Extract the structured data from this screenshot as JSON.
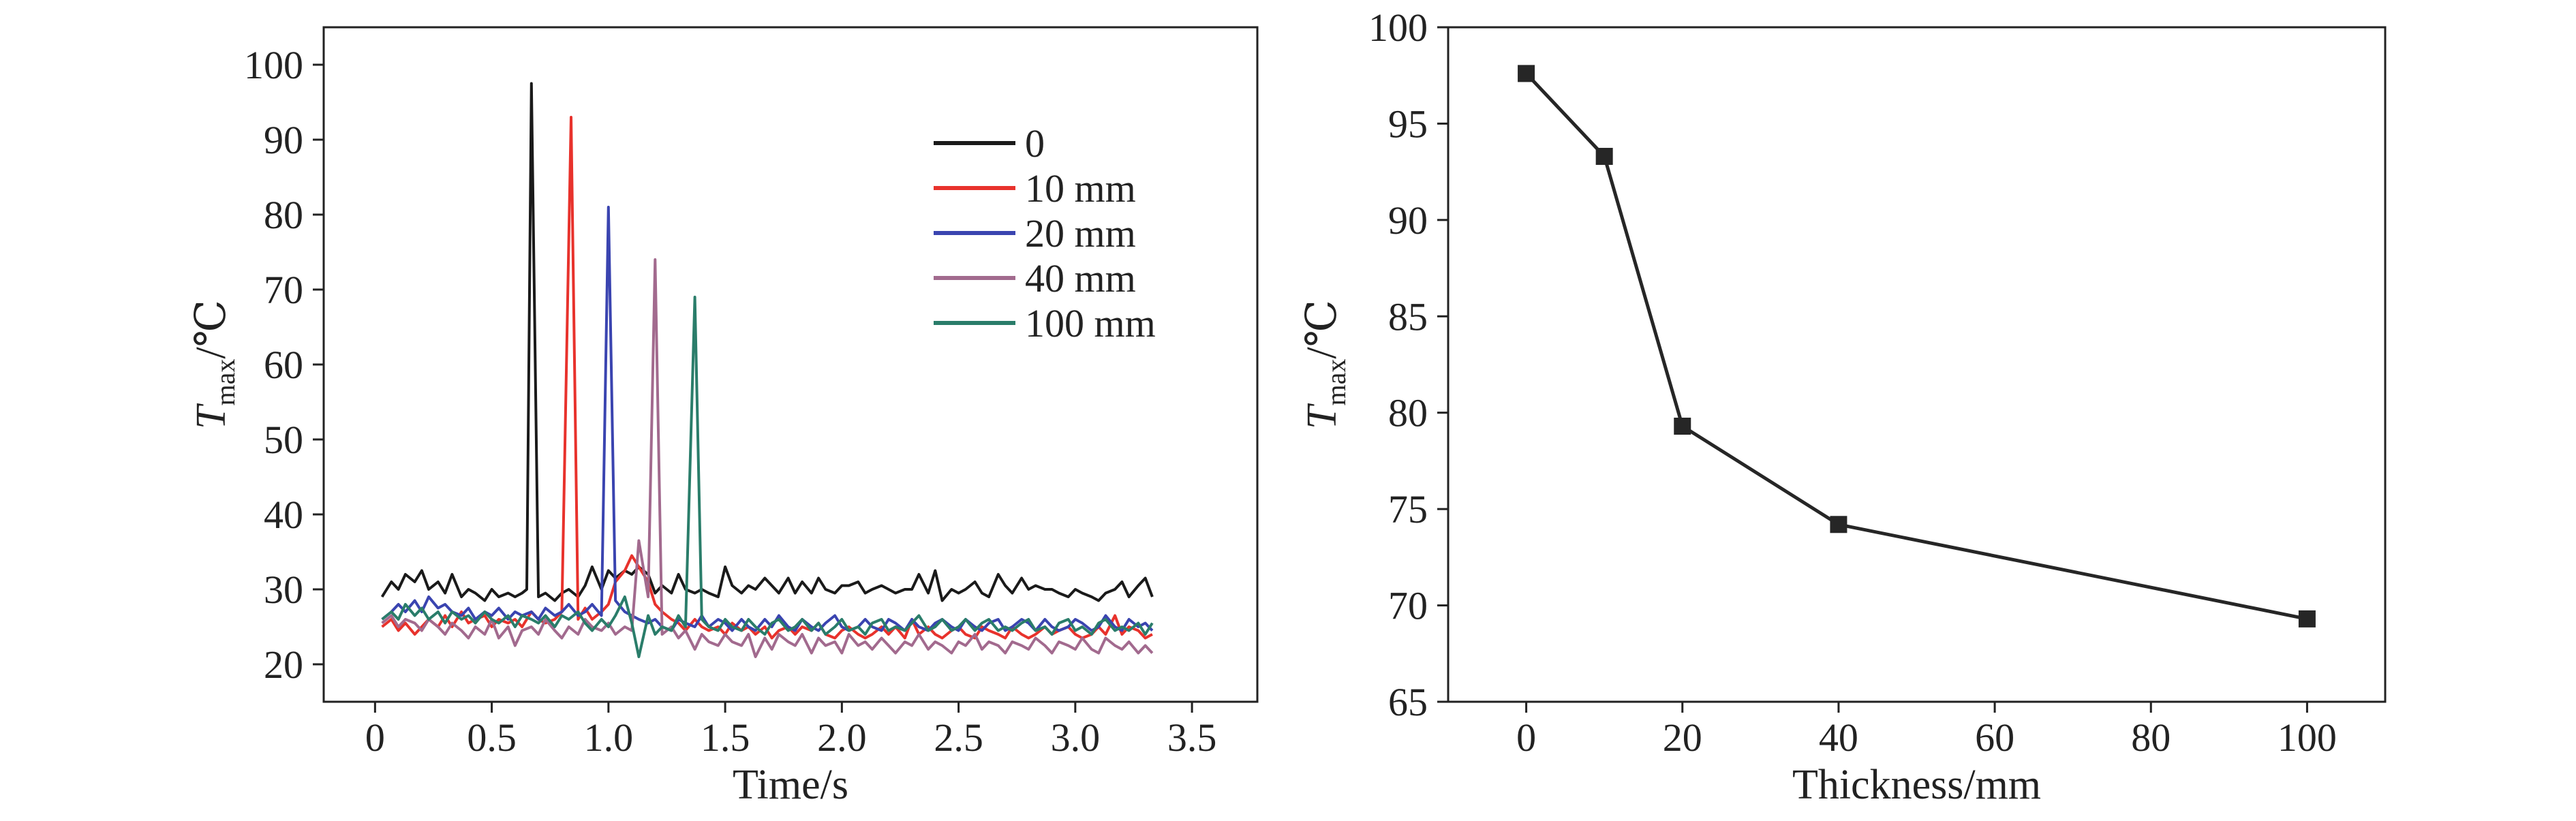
{
  "charts": [
    {
      "type": "line",
      "xlabel": "Time/s",
      "ylabel": {
        "main": "T",
        "sub": "max",
        "unit": "/℃"
      },
      "xlim": [
        -0.22,
        3.78
      ],
      "ylim": [
        15,
        105
      ],
      "xticks": [
        0,
        0.5,
        1.0,
        1.5,
        2.0,
        2.5,
        3.0,
        3.5
      ],
      "xtick_labels": [
        "0",
        "0.5",
        "1.0",
        "1.5",
        "2.0",
        "2.5",
        "3.0",
        "3.5"
      ],
      "yticks": [
        20,
        30,
        40,
        50,
        60,
        70,
        80,
        90,
        100
      ],
      "ytick_labels": [
        "20",
        "30",
        "40",
        "50",
        "60",
        "70",
        "80",
        "90",
        "100"
      ],
      "legend": {
        "position": "top-right"
      },
      "series": [
        {
          "name": "0",
          "color": "#1a1a1a",
          "x": [
            0.03,
            0.07,
            0.1,
            0.13,
            0.17,
            0.2,
            0.23,
            0.27,
            0.3,
            0.33,
            0.37,
            0.4,
            0.43,
            0.47,
            0.5,
            0.53,
            0.57,
            0.6,
            0.63,
            0.65,
            0.67,
            0.7,
            0.73,
            0.77,
            0.8,
            0.83,
            0.87,
            0.9,
            0.93,
            0.97,
            1.0,
            1.03,
            1.07,
            1.1,
            1.13,
            1.17,
            1.2,
            1.23,
            1.27,
            1.3,
            1.33,
            1.37,
            1.4,
            1.43,
            1.47,
            1.5,
            1.53,
            1.57,
            1.6,
            1.63,
            1.67,
            1.7,
            1.73,
            1.77,
            1.8,
            1.83,
            1.87,
            1.9,
            1.93,
            1.97,
            2.0,
            2.03,
            2.07,
            2.1,
            2.13,
            2.17,
            2.2,
            2.23,
            2.27,
            2.3,
            2.33,
            2.37,
            2.4,
            2.43,
            2.47,
            2.5,
            2.53,
            2.57,
            2.6,
            2.63,
            2.67,
            2.7,
            2.73,
            2.77,
            2.8,
            2.83,
            2.87,
            2.9,
            2.93,
            2.97,
            3.0,
            3.03,
            3.07,
            3.1,
            3.13,
            3.17,
            3.2,
            3.23,
            3.27,
            3.3,
            3.33
          ],
          "y": [
            29,
            31,
            30,
            32,
            31,
            32.5,
            30,
            31,
            29.5,
            32,
            29,
            30,
            29.5,
            28.5,
            30,
            29,
            29.5,
            29,
            29.5,
            30,
            97.5,
            29,
            29.5,
            28.5,
            29.5,
            30,
            29,
            30.5,
            33,
            30,
            32.5,
            31.5,
            32.5,
            32,
            33,
            32,
            29.5,
            30.5,
            29.5,
            32,
            30,
            29.5,
            30,
            29.5,
            29,
            33,
            30.5,
            29.5,
            30.5,
            30,
            31.5,
            30.5,
            29.5,
            31.5,
            29.5,
            31,
            29.5,
            31.5,
            30,
            29.5,
            30.5,
            30.5,
            31,
            29.5,
            30,
            30.5,
            30,
            29.5,
            30,
            30,
            32,
            29.5,
            32.5,
            28.5,
            30,
            29.5,
            30,
            31,
            29.5,
            29,
            32,
            30.5,
            29.5,
            31.5,
            30,
            30.5,
            30,
            30,
            29.5,
            29,
            30,
            29.5,
            29,
            28.5,
            29.5,
            30,
            31,
            29,
            30.5,
            31.5,
            29
          ]
        },
        {
          "name": "10 mm",
          "color": "#e8322c",
          "x": [
            0.03,
            0.07,
            0.1,
            0.13,
            0.17,
            0.2,
            0.23,
            0.27,
            0.3,
            0.33,
            0.37,
            0.4,
            0.43,
            0.47,
            0.5,
            0.53,
            0.57,
            0.6,
            0.63,
            0.67,
            0.7,
            0.73,
            0.77,
            0.8,
            0.84,
            0.87,
            0.9,
            0.93,
            0.97,
            1.0,
            1.03,
            1.07,
            1.1,
            1.13,
            1.17,
            1.2,
            1.23,
            1.27,
            1.3,
            1.33,
            1.37,
            1.4,
            1.43,
            1.47,
            1.5,
            1.53,
            1.57,
            1.6,
            1.63,
            1.67,
            1.7,
            1.73,
            1.77,
            1.8,
            1.83,
            1.87,
            1.9,
            1.93,
            1.97,
            2.0,
            2.03,
            2.07,
            2.1,
            2.13,
            2.17,
            2.2,
            2.23,
            2.27,
            2.3,
            2.33,
            2.37,
            2.4,
            2.43,
            2.47,
            2.5,
            2.53,
            2.57,
            2.6,
            2.63,
            2.67,
            2.7,
            2.73,
            2.77,
            2.8,
            2.83,
            2.87,
            2.9,
            2.93,
            2.97,
            3.0,
            3.03,
            3.07,
            3.1,
            3.13,
            3.17,
            3.2,
            3.23,
            3.27,
            3.3,
            3.33
          ],
          "y": [
            25,
            26,
            24.5,
            25.5,
            24,
            25,
            26,
            25,
            26.5,
            25,
            27,
            25.5,
            26,
            26.5,
            25,
            26,
            25.5,
            26,
            25,
            27,
            26,
            25.5,
            26,
            27,
            93,
            26,
            27.5,
            26,
            27,
            28,
            31,
            32.5,
            34.5,
            33,
            31,
            28,
            27,
            26,
            25.5,
            24.5,
            26,
            25,
            24.5,
            25,
            24,
            25.5,
            24.5,
            25,
            24,
            25,
            23.5,
            24.5,
            25,
            24,
            25,
            24.5,
            25.5,
            24,
            23.5,
            24.5,
            25,
            24,
            23.5,
            24,
            25,
            24,
            25,
            23.5,
            26,
            24,
            25,
            24,
            23.5,
            24.5,
            25,
            24,
            23.5,
            25,
            24.5,
            24,
            23.5,
            25,
            24,
            23.5,
            24,
            25,
            24,
            24.5,
            25,
            24,
            23.5,
            24,
            25,
            24,
            26.5,
            24,
            25,
            24.5,
            23.5,
            24
          ]
        },
        {
          "name": "20 mm",
          "color": "#3a44b0",
          "x": [
            0.03,
            0.07,
            0.1,
            0.13,
            0.17,
            0.2,
            0.23,
            0.27,
            0.3,
            0.33,
            0.37,
            0.4,
            0.43,
            0.47,
            0.5,
            0.53,
            0.57,
            0.6,
            0.63,
            0.67,
            0.7,
            0.73,
            0.77,
            0.8,
            0.83,
            0.87,
            0.9,
            0.93,
            0.97,
            1.0,
            1.03,
            1.07,
            1.1,
            1.13,
            1.17,
            1.2,
            1.23,
            1.27,
            1.3,
            1.33,
            1.37,
            1.4,
            1.43,
            1.47,
            1.5,
            1.53,
            1.57,
            1.6,
            1.63,
            1.67,
            1.7,
            1.73,
            1.77,
            1.8,
            1.83,
            1.87,
            1.9,
            1.93,
            1.97,
            2.0,
            2.03,
            2.07,
            2.1,
            2.13,
            2.17,
            2.2,
            2.23,
            2.27,
            2.3,
            2.33,
            2.37,
            2.4,
            2.43,
            2.47,
            2.5,
            2.53,
            2.57,
            2.6,
            2.63,
            2.67,
            2.7,
            2.73,
            2.77,
            2.8,
            2.83,
            2.87,
            2.9,
            2.93,
            2.97,
            3.0,
            3.03,
            3.07,
            3.1,
            3.13,
            3.17,
            3.2,
            3.23,
            3.27,
            3.3,
            3.33
          ],
          "y": [
            26,
            27,
            28,
            27,
            28.5,
            27,
            29,
            27.5,
            28,
            27,
            26.5,
            27.5,
            26,
            27,
            26.5,
            27.5,
            26,
            27,
            26.5,
            27,
            26,
            27.5,
            26.5,
            27,
            28,
            26.5,
            27,
            28,
            26.5,
            81,
            28.5,
            27,
            26.5,
            26,
            25.5,
            26,
            25,
            24.5,
            26,
            25.5,
            25,
            26.5,
            25,
            26,
            25.5,
            24.5,
            26,
            25,
            24.5,
            26,
            25,
            26.5,
            25,
            24.5,
            26,
            25,
            24.5,
            25.5,
            26.5,
            25,
            24.5,
            25,
            26,
            25,
            24.5,
            26,
            25.5,
            24.5,
            26,
            25,
            24.5,
            25.5,
            26,
            25,
            24.5,
            26,
            25,
            24.5,
            25.5,
            26,
            24.5,
            25,
            26,
            25.5,
            24.5,
            26,
            25,
            24.5,
            25,
            26,
            25.5,
            24.5,
            25,
            26.5,
            25,
            24.5,
            26,
            25,
            25.5,
            24.5
          ]
        },
        {
          "name": "40 mm",
          "color": "#a26a8e",
          "x": [
            0.03,
            0.07,
            0.1,
            0.13,
            0.17,
            0.2,
            0.23,
            0.27,
            0.3,
            0.33,
            0.37,
            0.4,
            0.43,
            0.47,
            0.5,
            0.53,
            0.57,
            0.6,
            0.63,
            0.67,
            0.7,
            0.73,
            0.77,
            0.8,
            0.83,
            0.87,
            0.9,
            0.93,
            0.97,
            1.0,
            1.03,
            1.07,
            1.1,
            1.13,
            1.17,
            1.2,
            1.23,
            1.27,
            1.3,
            1.33,
            1.37,
            1.4,
            1.43,
            1.47,
            1.5,
            1.53,
            1.57,
            1.6,
            1.63,
            1.67,
            1.7,
            1.73,
            1.77,
            1.8,
            1.83,
            1.87,
            1.9,
            1.93,
            1.97,
            2.0,
            2.03,
            2.07,
            2.1,
            2.13,
            2.17,
            2.2,
            2.23,
            2.27,
            2.3,
            2.33,
            2.37,
            2.4,
            2.43,
            2.47,
            2.5,
            2.53,
            2.57,
            2.6,
            2.63,
            2.67,
            2.7,
            2.73,
            2.77,
            2.8,
            2.83,
            2.87,
            2.9,
            2.93,
            2.97,
            3.0,
            3.03,
            3.07,
            3.1,
            3.13,
            3.17,
            3.2,
            3.23,
            3.27,
            3.3,
            3.33
          ],
          "y": [
            25.5,
            26.5,
            25,
            26,
            25.5,
            24.5,
            26,
            25,
            24,
            25.5,
            24.5,
            23.5,
            25,
            24,
            26,
            23.5,
            25,
            22.5,
            24.5,
            25,
            24,
            26,
            24.5,
            23.5,
            25,
            24,
            26,
            25,
            24.5,
            25.5,
            24,
            25,
            24.5,
            36.5,
            29,
            74,
            24,
            25,
            23.5,
            24.5,
            22,
            24,
            23,
            22.5,
            24,
            23,
            22.5,
            24,
            21,
            23.5,
            22,
            24,
            23,
            22.5,
            24,
            21.5,
            23.5,
            22.5,
            23,
            21.5,
            24,
            22.5,
            23,
            22,
            23.5,
            22.5,
            21.5,
            23,
            22.5,
            24,
            22,
            23,
            22.5,
            21.5,
            23,
            22.5,
            24,
            22,
            23,
            22.5,
            21.5,
            23,
            22.5,
            22,
            23.5,
            22.5,
            21.5,
            23,
            22.5,
            22,
            23.5,
            22,
            21.5,
            23.5,
            22.5,
            22,
            23,
            21.5,
            22.5,
            21.5
          ]
        },
        {
          "name": "100 mm",
          "color": "#2a7d6a",
          "x": [
            0.03,
            0.07,
            0.1,
            0.13,
            0.17,
            0.2,
            0.23,
            0.27,
            0.3,
            0.33,
            0.37,
            0.4,
            0.43,
            0.47,
            0.5,
            0.53,
            0.57,
            0.6,
            0.63,
            0.67,
            0.7,
            0.73,
            0.77,
            0.8,
            0.83,
            0.87,
            0.9,
            0.93,
            0.97,
            1.0,
            1.03,
            1.07,
            1.1,
            1.13,
            1.17,
            1.2,
            1.23,
            1.27,
            1.3,
            1.33,
            1.37,
            1.4,
            1.43,
            1.47,
            1.5,
            1.53,
            1.57,
            1.6,
            1.63,
            1.67,
            1.7,
            1.73,
            1.77,
            1.8,
            1.83,
            1.87,
            1.9,
            1.93,
            1.97,
            2.0,
            2.03,
            2.07,
            2.1,
            2.13,
            2.17,
            2.2,
            2.23,
            2.27,
            2.3,
            2.33,
            2.37,
            2.4,
            2.43,
            2.47,
            2.5,
            2.53,
            2.57,
            2.6,
            2.63,
            2.67,
            2.7,
            2.73,
            2.77,
            2.8,
            2.83,
            2.87,
            2.9,
            2.93,
            2.97,
            3.0,
            3.03,
            3.07,
            3.1,
            3.13,
            3.17,
            3.2,
            3.23,
            3.27,
            3.3,
            3.33
          ],
          "y": [
            26,
            27,
            26,
            28,
            26.5,
            27.5,
            26,
            27,
            25.5,
            27,
            26,
            26.5,
            25.5,
            27,
            26,
            25.5,
            26.5,
            25,
            26.5,
            26,
            25.5,
            26.5,
            25,
            26.5,
            26,
            27,
            25.5,
            24.5,
            26,
            25,
            26.5,
            29,
            25.5,
            21,
            26.5,
            24,
            25,
            24.5,
            26.5,
            25,
            69,
            26,
            25,
            24.5,
            26,
            25,
            24.5,
            26,
            25,
            24,
            25.5,
            26,
            24.5,
            25,
            26,
            24.5,
            25.5,
            24,
            25,
            26,
            24.5,
            25,
            24,
            25.5,
            26,
            24.5,
            25,
            24.5,
            25.5,
            26.5,
            24.5,
            25,
            26,
            24.5,
            25,
            26,
            24.5,
            25.5,
            26,
            24.5,
            25,
            24.5,
            25.5,
            26,
            24.5,
            25,
            24,
            25.5,
            26,
            24.5,
            25,
            24,
            25.5,
            26,
            24.5,
            25,
            24.5,
            25.5,
            24,
            25.5
          ]
        }
      ]
    },
    {
      "type": "line",
      "xlabel": "Thickness/mm",
      "ylabel": {
        "main": "T",
        "sub": "max",
        "unit": "/℃"
      },
      "xlim": [
        -10,
        110
      ],
      "ylim": [
        65,
        100
      ],
      "xticks": [
        0,
        20,
        40,
        60,
        80,
        100
      ],
      "xtick_labels": [
        "0",
        "20",
        "40",
        "60",
        "80",
        "100"
      ],
      "yticks": [
        65,
        70,
        75,
        80,
        85,
        90,
        95,
        100
      ],
      "ytick_labels": [
        "65",
        "70",
        "75",
        "80",
        "85",
        "90",
        "95",
        "100"
      ],
      "marker": "square",
      "series": [
        {
          "color": "#262626",
          "x": [
            0,
            10,
            20,
            40,
            100
          ],
          "y": [
            97.6,
            93.3,
            79.3,
            74.2,
            69.3
          ]
        }
      ]
    }
  ]
}
